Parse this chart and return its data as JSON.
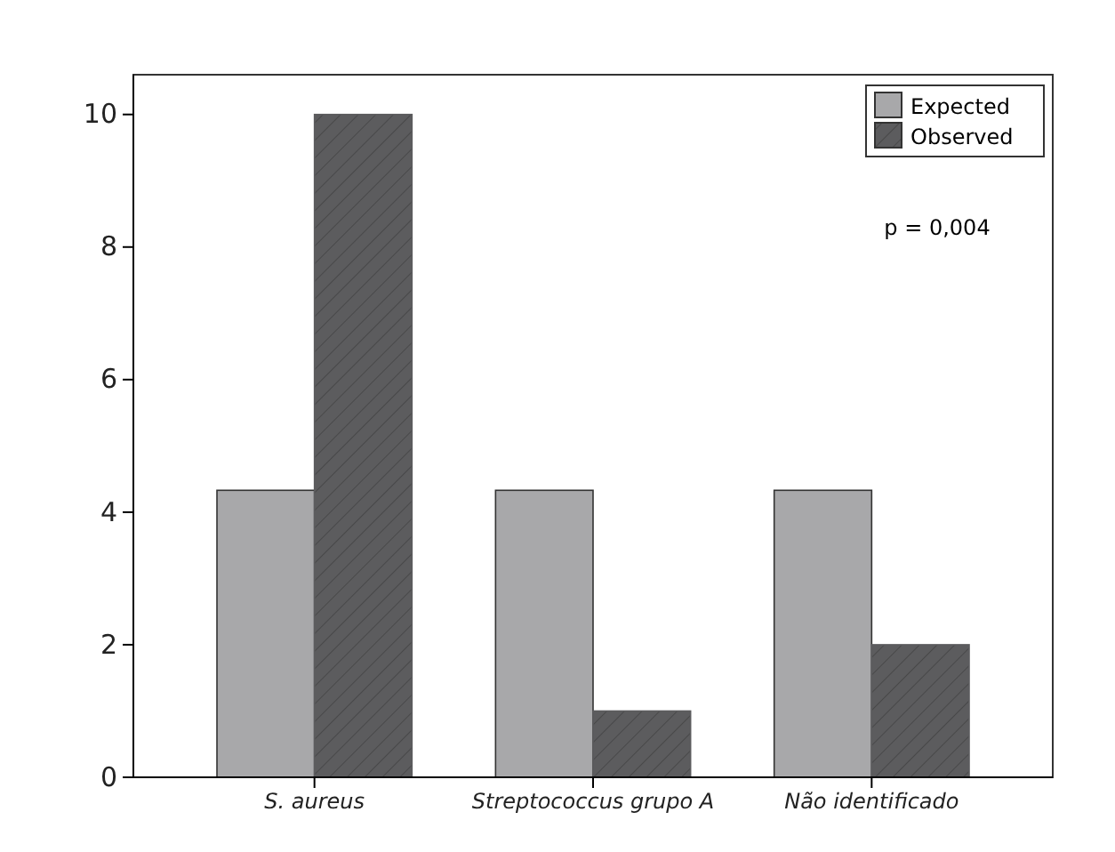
{
  "chart_data": {
    "type": "bar",
    "categories": [
      "S. aureus",
      "Streptococcus grupo A",
      "Não identificado"
    ],
    "series": [
      {
        "name": "Expected",
        "color": "#a8a8aa",
        "values": [
          4.33,
          4.33,
          4.33
        ]
      },
      {
        "name": "Observed",
        "color": "#5c5c5e",
        "values": [
          10,
          1,
          2
        ]
      }
    ],
    "ylim": [
      0,
      10.6
    ],
    "yticks": [
      0,
      2,
      4,
      6,
      8,
      10
    ],
    "grid": false,
    "legend": "top right",
    "annotations": [
      "p = 0,004"
    ]
  }
}
